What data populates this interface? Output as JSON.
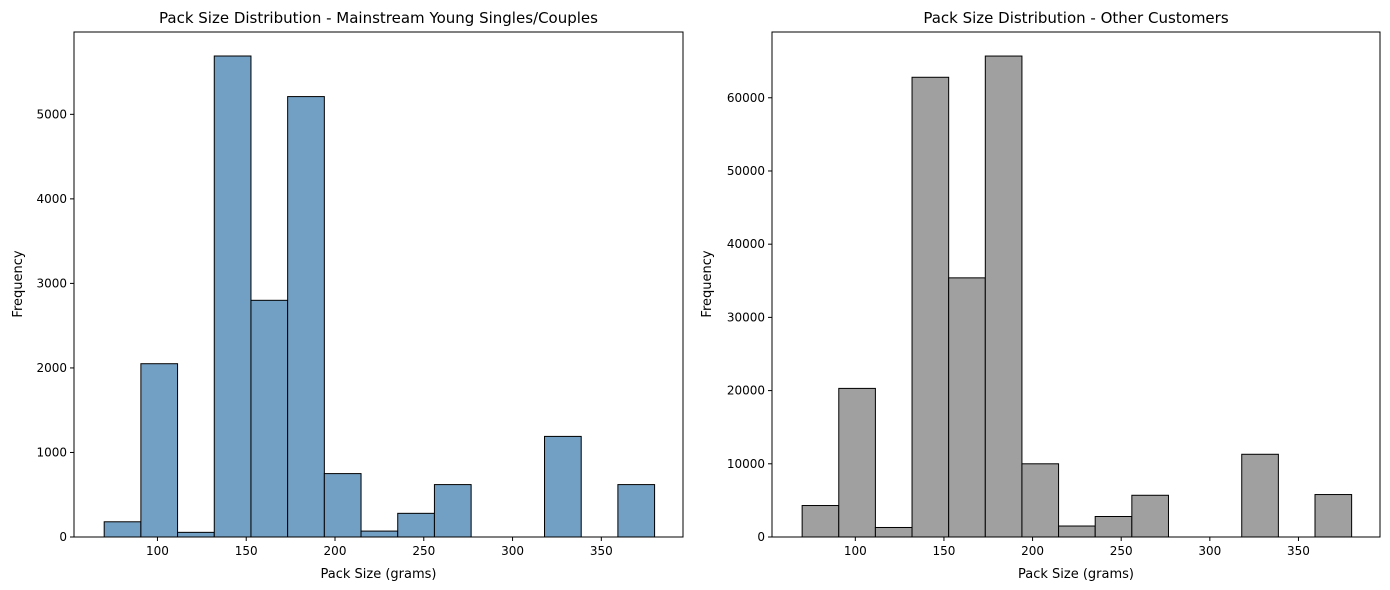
{
  "chart_data": [
    {
      "type": "bar",
      "title": "Pack Size Distribution - Mainstream Young Singles/Couples",
      "xlabel": "Pack Size (grams)",
      "ylabel": "Frequency",
      "bin_edges": [
        70,
        90.67,
        111.33,
        132,
        152.67,
        173.33,
        194,
        214.67,
        235.33,
        256,
        276.67,
        297.33,
        318,
        338.67,
        359.33,
        380
      ],
      "values": [
        180,
        2050,
        55,
        5690,
        2800,
        5210,
        750,
        70,
        280,
        620,
        0,
        0,
        1190,
        0,
        620
      ],
      "xlim": [
        53,
        396
      ],
      "ylim": [
        0,
        5974
      ],
      "x_ticks": [
        "100",
        "150",
        "200",
        "250",
        "300",
        "350"
      ],
      "y_ticks": [
        "0",
        "1000",
        "2000",
        "3000",
        "4000",
        "5000"
      ],
      "bar_color": "#729fc4",
      "edge_color": "#000000",
      "grid": false
    },
    {
      "type": "bar",
      "title": "Pack Size Distribution - Other Customers",
      "xlabel": "Pack Size (grams)",
      "ylabel": "Frequency",
      "bin_edges": [
        70,
        90.67,
        111.33,
        132,
        152.67,
        173.33,
        194,
        214.67,
        235.33,
        256,
        276.67,
        297.33,
        318,
        338.67,
        359.33,
        380
      ],
      "values": [
        4300,
        20300,
        1300,
        62800,
        35400,
        65700,
        10000,
        1500,
        2800,
        5700,
        0,
        0,
        11300,
        0,
        5800
      ],
      "xlim": [
        53,
        396
      ],
      "ylim": [
        0,
        68985
      ],
      "x_ticks": [
        "100",
        "150",
        "200",
        "250",
        "300",
        "350"
      ],
      "y_ticks": [
        "0",
        "10000",
        "20000",
        "30000",
        "40000",
        "50000",
        "60000"
      ],
      "bar_color": "#a0a0a0",
      "edge_color": "#000000",
      "grid": false
    }
  ]
}
